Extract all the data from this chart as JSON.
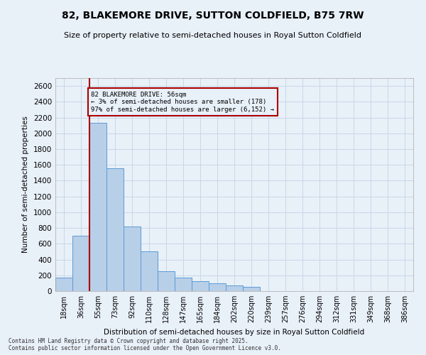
{
  "title": "82, BLAKEMORE DRIVE, SUTTON COLDFIELD, B75 7RW",
  "subtitle": "Size of property relative to semi-detached houses in Royal Sutton Coldfield",
  "xlabel": "Distribution of semi-detached houses by size in Royal Sutton Coldfield",
  "ylabel": "Number of semi-detached properties",
  "categories": [
    "18sqm",
    "36sqm",
    "55sqm",
    "73sqm",
    "92sqm",
    "110sqm",
    "128sqm",
    "147sqm",
    "165sqm",
    "184sqm",
    "202sqm",
    "220sqm",
    "239sqm",
    "257sqm",
    "276sqm",
    "294sqm",
    "312sqm",
    "331sqm",
    "349sqm",
    "368sqm",
    "386sqm"
  ],
  "values": [
    170,
    700,
    2130,
    1560,
    820,
    500,
    250,
    175,
    125,
    100,
    75,
    50,
    0,
    0,
    0,
    0,
    0,
    0,
    0,
    0,
    0
  ],
  "bar_color": "#b8cfe8",
  "bar_edge_color": "#5b9bd5",
  "vline_color": "#aa0000",
  "vline_pos": 2,
  "annotation_text": "82 BLAKEMORE DRIVE: 56sqm\n← 3% of semi-detached houses are smaller (178)\n97% of semi-detached houses are larger (6,152) →",
  "annotation_box_color": "#aa0000",
  "ylim": [
    0,
    2700
  ],
  "yticks": [
    0,
    200,
    400,
    600,
    800,
    1000,
    1200,
    1400,
    1600,
    1800,
    2000,
    2200,
    2400,
    2600
  ],
  "grid_color": "#c8d8e8",
  "bg_color": "#e8f0f8",
  "footer": "Contains HM Land Registry data © Crown copyright and database right 2025.\nContains public sector information licensed under the Open Government Licence v3.0."
}
